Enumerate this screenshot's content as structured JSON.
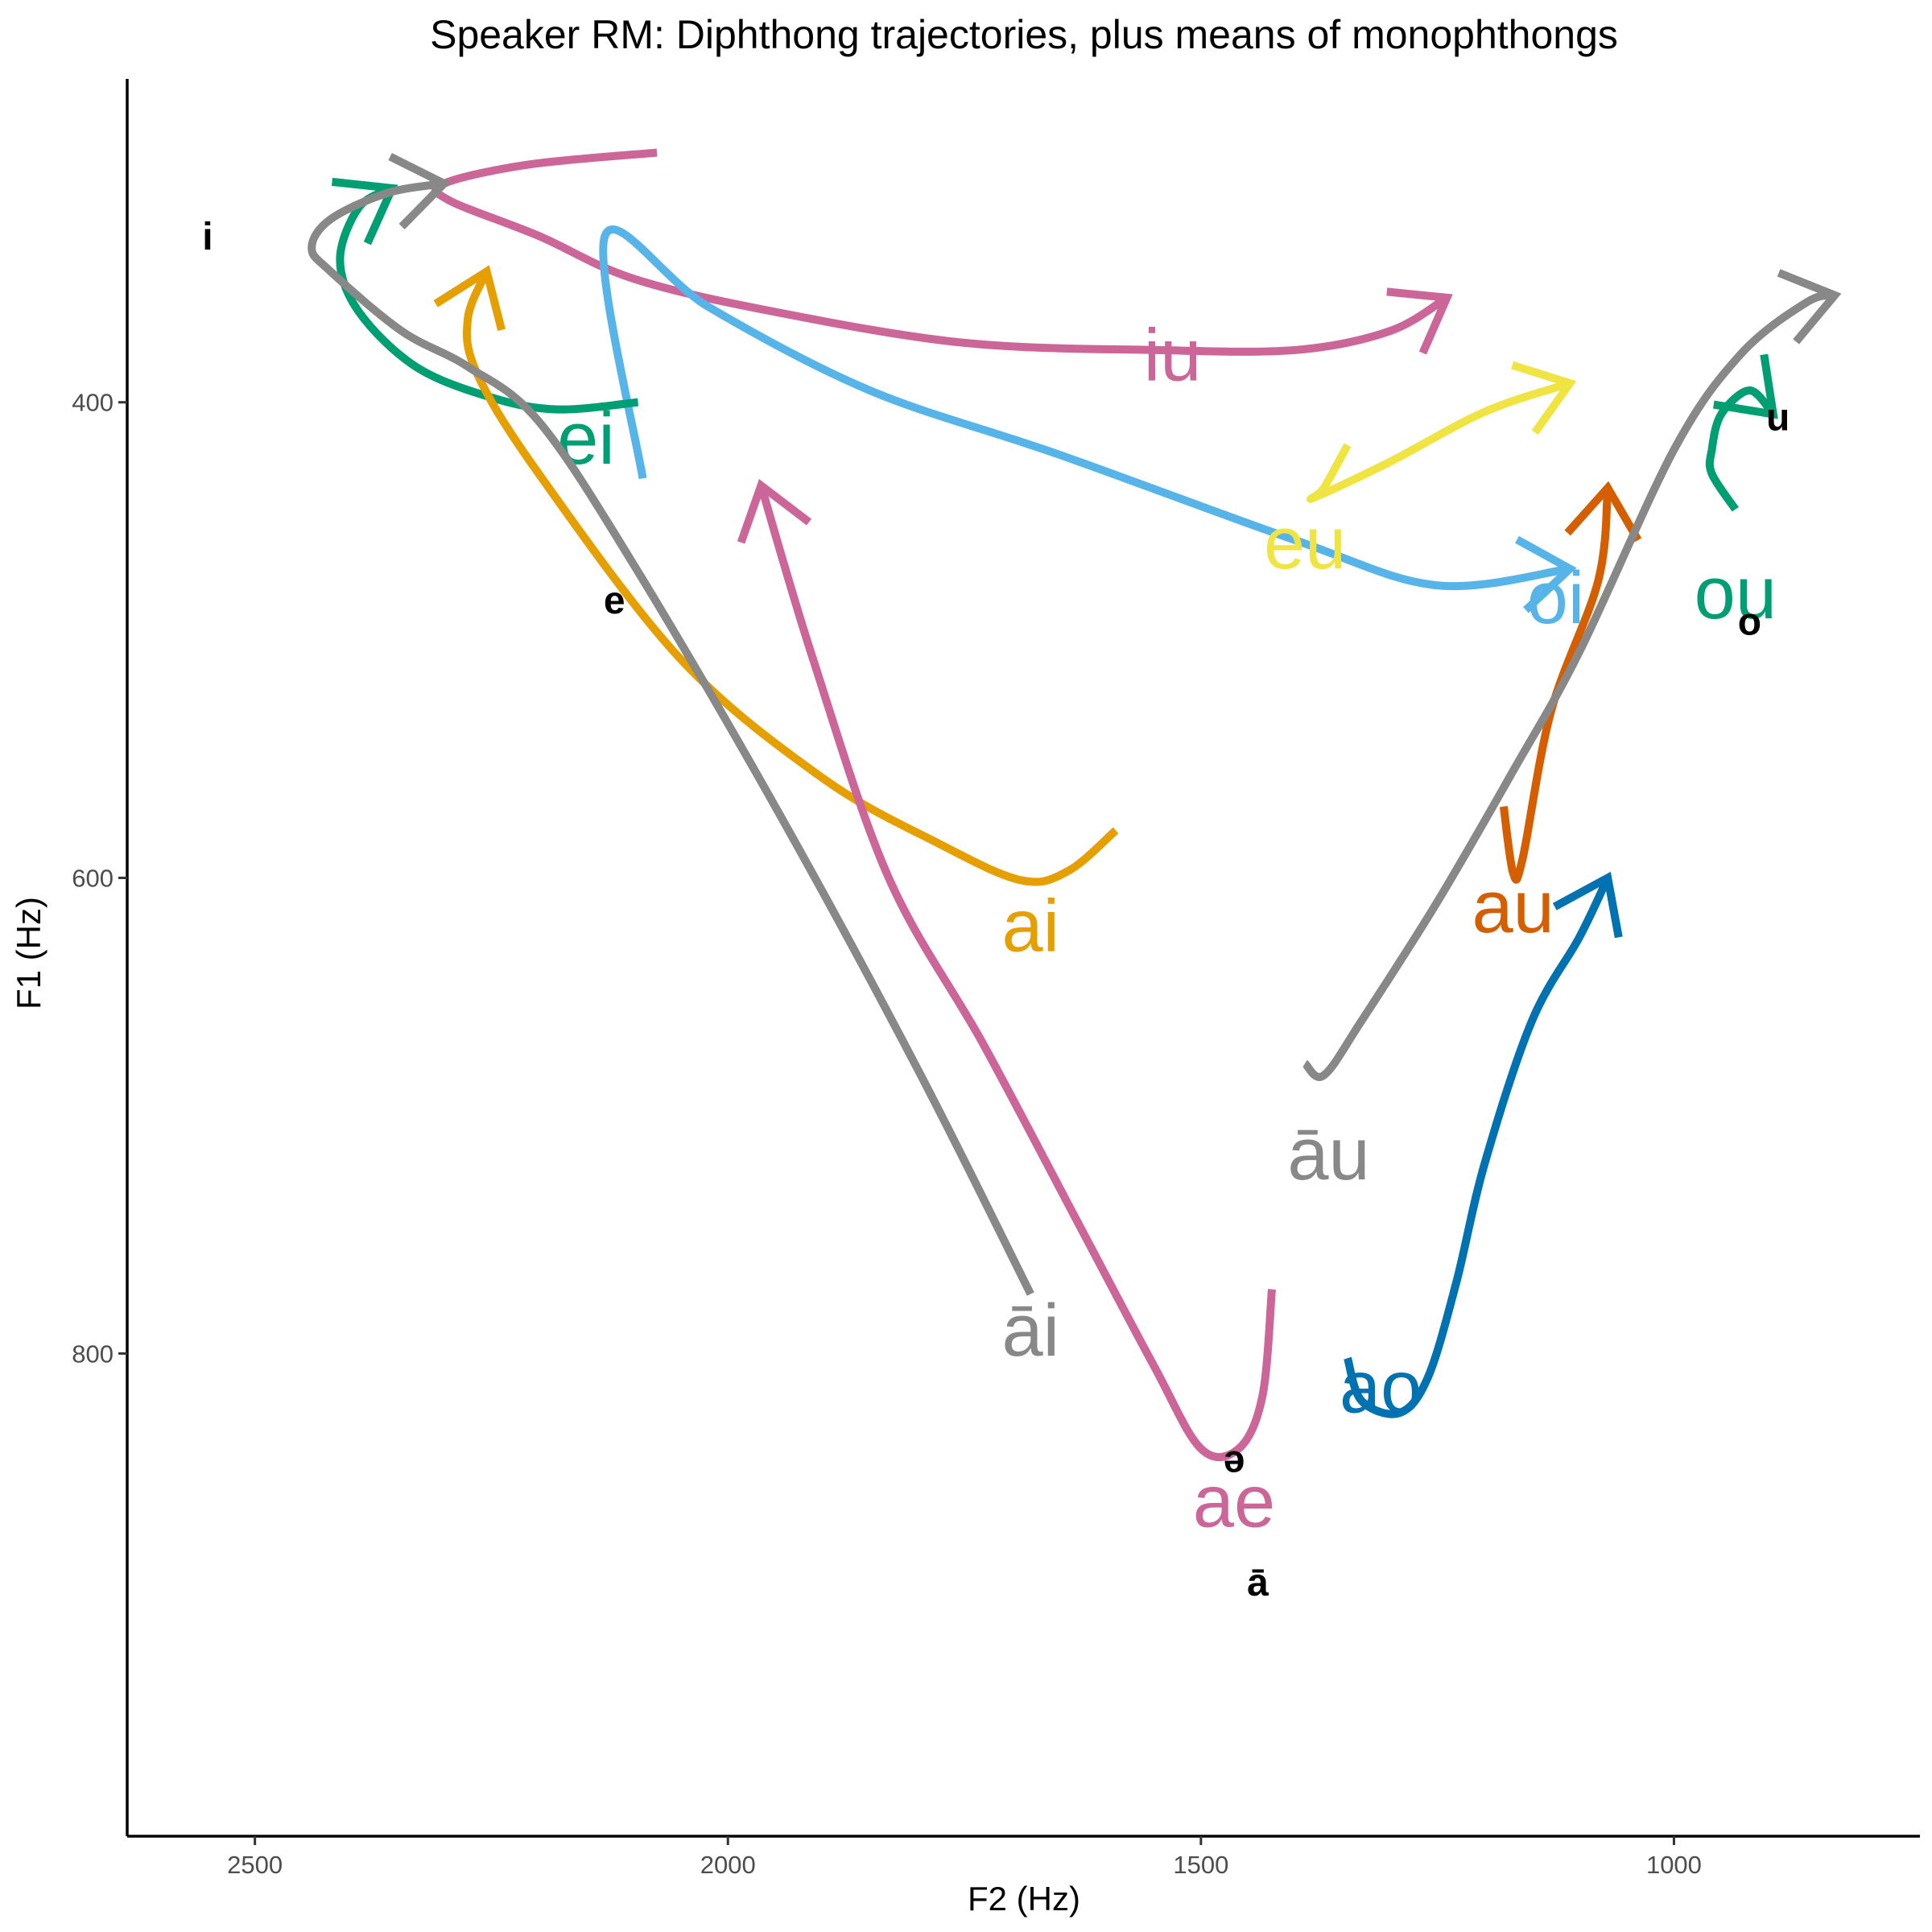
{
  "chart_data": {
    "type": "line",
    "title": "Speaker RM: Diphthong trajectories, plus means of monophthongs",
    "xlabel": "F2 (Hz)",
    "ylabel": "F1 (Hz)",
    "x_reversed": true,
    "y_reversed": true,
    "xlim": [
      2635,
      740
    ],
    "ylim": [
      264,
      1003
    ],
    "x_ticks": [
      2500,
      2000,
      1500,
      1000
    ],
    "y_ticks": [
      400,
      600,
      800
    ],
    "grid": false,
    "legend": "none",
    "series": [
      {
        "name": "iu",
        "color": "#CC6699",
        "label": {
          "F2": 1530,
          "F1": 380
        },
        "points": [
          [
            2075,
            295
          ],
          [
            2210,
            300
          ],
          [
            2300,
            308
          ],
          [
            2295,
            315
          ],
          [
            2200,
            330
          ],
          [
            2100,
            348
          ],
          [
            1950,
            362
          ],
          [
            1750,
            375
          ],
          [
            1550,
            378
          ],
          [
            1400,
            378
          ],
          [
            1300,
            370
          ],
          [
            1240,
            356
          ]
        ]
      },
      {
        "name": "oi",
        "color": "#56B4E9",
        "label": {
          "F2": 1125,
          "F1": 482
        },
        "points": [
          [
            2090,
            432
          ],
          [
            2130,
            330
          ],
          [
            2020,
            360
          ],
          [
            1850,
            395
          ],
          [
            1650,
            422
          ],
          [
            1400,
            458
          ],
          [
            1250,
            477
          ],
          [
            1110,
            470
          ]
        ]
      },
      {
        "name": "eu",
        "color": "#F0E442",
        "label": {
          "F2": 1390,
          "F1": 459
        },
        "points": [
          [
            1345,
            418
          ],
          [
            1370,
            436
          ],
          [
            1380,
            440
          ],
          [
            1300,
            425
          ],
          [
            1200,
            404
          ],
          [
            1110,
            392
          ]
        ]
      },
      {
        "name": "ei",
        "color": "#009E73",
        "label": {
          "F2": 2150,
          "F1": 415
        },
        "points": [
          [
            2095,
            400
          ],
          [
            2180,
            403
          ],
          [
            2250,
            398
          ],
          [
            2330,
            385
          ],
          [
            2390,
            362
          ],
          [
            2410,
            340
          ],
          [
            2390,
            318
          ],
          [
            2355,
            310
          ]
        ]
      },
      {
        "name": "ai",
        "color": "#E69F00",
        "label": {
          "F2": 1680,
          "F1": 620
        },
        "points": [
          [
            1590,
            580
          ],
          [
            1640,
            597
          ],
          [
            1690,
            601
          ],
          [
            1780,
            585
          ],
          [
            1900,
            558
          ],
          [
            2050,
            508
          ],
          [
            2200,
            430
          ],
          [
            2265,
            388
          ],
          [
            2275,
            365
          ],
          [
            2255,
            345
          ]
        ]
      },
      {
        "name": "āi",
        "color": "#888888",
        "label": {
          "F2": 1680,
          "F1": 790
        },
        "points": [
          [
            1680,
            775
          ],
          [
            1800,
            680
          ],
          [
            1950,
            570
          ],
          [
            2100,
            468
          ],
          [
            2200,
            408
          ],
          [
            2275,
            385
          ],
          [
            2345,
            370
          ],
          [
            2420,
            345
          ],
          [
            2440,
            335
          ],
          [
            2420,
            323
          ],
          [
            2360,
            312
          ],
          [
            2300,
            308
          ]
        ]
      },
      {
        "name": "ae",
        "color": "#CC6699",
        "label": {
          "F2": 1465,
          "F1": 862
        },
        "points": [
          [
            1425,
            773
          ],
          [
            1435,
            818
          ],
          [
            1460,
            840
          ],
          [
            1500,
            840
          ],
          [
            1550,
            805
          ],
          [
            1630,
            745
          ],
          [
            1730,
            670
          ],
          [
            1830,
            600
          ],
          [
            1910,
            508
          ],
          [
            1965,
            435
          ]
        ]
      },
      {
        "name": "ao",
        "color": "#0072B2",
        "label": {
          "F2": 1310,
          "F1": 814
        },
        "points": [
          [
            1345,
            802
          ],
          [
            1330,
            820
          ],
          [
            1290,
            825
          ],
          [
            1260,
            810
          ],
          [
            1230,
            770
          ],
          [
            1200,
            720
          ],
          [
            1150,
            660
          ],
          [
            1100,
            625
          ],
          [
            1070,
            600
          ]
        ]
      },
      {
        "name": "au",
        "color": "#D55E00",
        "label": {
          "F2": 1170,
          "F1": 612
        },
        "points": [
          [
            1180,
            570
          ],
          [
            1170,
            598
          ],
          [
            1160,
            592
          ],
          [
            1130,
            530
          ],
          [
            1080,
            475
          ],
          [
            1070,
            436
          ]
        ]
      },
      {
        "name": "āu",
        "color": "#888888",
        "label": {
          "F2": 1365,
          "F1": 716
        },
        "points": [
          [
            1390,
            678
          ],
          [
            1370,
            683
          ],
          [
            1330,
            660
          ],
          [
            1250,
            610
          ],
          [
            1170,
            555
          ],
          [
            1100,
            505
          ],
          [
            1000,
            420
          ],
          [
            930,
            380
          ],
          [
            860,
            358
          ],
          [
            830,
            355
          ]
        ]
      },
      {
        "name": "ou",
        "color": "#009E73",
        "label": {
          "F2": 935,
          "F1": 480
        },
        "points": [
          [
            935,
            445
          ],
          [
            960,
            430
          ],
          [
            960,
            420
          ],
          [
            950,
            405
          ],
          [
            920,
            395
          ],
          [
            895,
            405
          ]
        ]
      }
    ],
    "monophthongs": [
      {
        "label": "i",
        "F2": 2550,
        "F1": 330
      },
      {
        "label": "e",
        "F2": 2120,
        "F1": 483
      },
      {
        "label": "u",
        "F2": 890,
        "F1": 406
      },
      {
        "label": "o",
        "F2": 920,
        "F1": 492
      },
      {
        "label": "ə",
        "F2": 1465,
        "F1": 844
      },
      {
        "label": "ā",
        "F2": 1440,
        "F1": 896
      }
    ]
  }
}
